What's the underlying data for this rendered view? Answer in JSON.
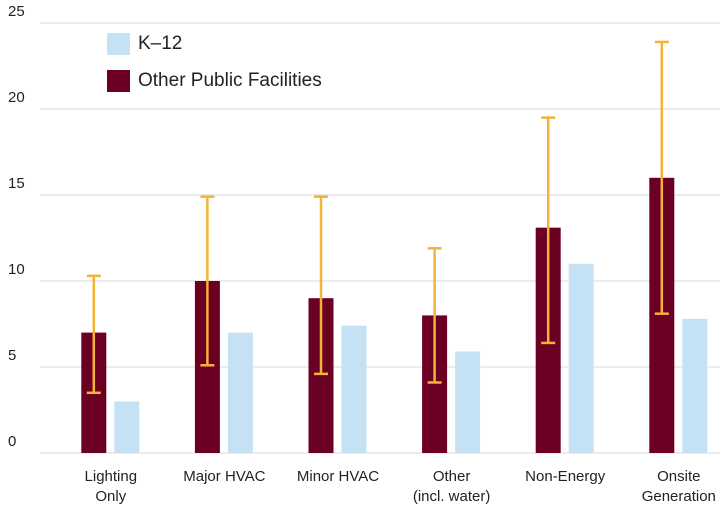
{
  "chart_data": {
    "type": "bar",
    "categories": [
      [
        "Lighting",
        "Only"
      ],
      [
        "Major HVAC"
      ],
      [
        "Minor HVAC"
      ],
      [
        "Other",
        "(incl. water)"
      ],
      [
        "Non-Energy"
      ],
      [
        "Onsite",
        "Generation"
      ]
    ],
    "series": [
      {
        "name": "K–12",
        "color": "#c5e2f4",
        "values": [
          3,
          7,
          7.4,
          5.9,
          11,
          7.8
        ]
      },
      {
        "name": "Other Public Facilities",
        "color": "#6b0023",
        "values": [
          7,
          10,
          9,
          8,
          13.1,
          16
        ],
        "error_low": [
          3.5,
          5.1,
          4.6,
          4.1,
          6.4,
          8.1
        ],
        "error_high": [
          10.3,
          14.9,
          14.9,
          11.9,
          19.5,
          23.9
        ],
        "error_color": "#f3b23a"
      }
    ],
    "ylim": [
      0,
      25
    ],
    "yticks": [
      0,
      5,
      10,
      15,
      20,
      25
    ],
    "grid": true,
    "legend": "top-left"
  }
}
